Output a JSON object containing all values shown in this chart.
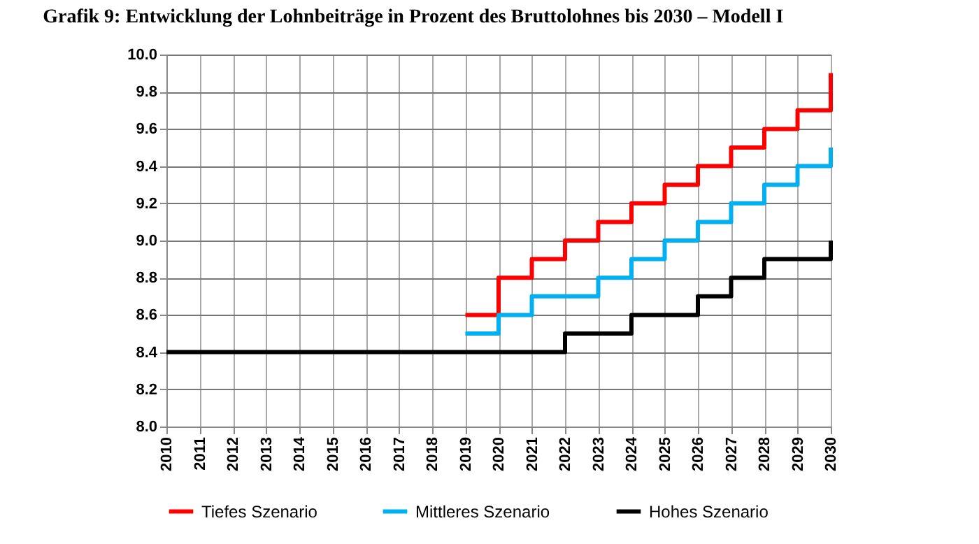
{
  "chart_data": {
    "type": "step",
    "title": "Grafik 9: Entwicklung der Lohnbeiträge in Prozent des Bruttolohnes bis 2030 – Modell I",
    "series": [
      {
        "name": "Tiefes Szenario",
        "color": "#ff0000",
        "x": [
          2019,
          2020,
          2021,
          2022,
          2023,
          2024,
          2025,
          2026,
          2027,
          2028,
          2029,
          2030
        ],
        "values": [
          8.6,
          8.8,
          8.9,
          9.0,
          9.1,
          9.2,
          9.3,
          9.4,
          9.5,
          9.6,
          9.7,
          9.9
        ]
      },
      {
        "name": "Mittleres Szenario",
        "color": "#00b0f0",
        "x": [
          2019,
          2020,
          2021,
          2022,
          2023,
          2024,
          2025,
          2026,
          2027,
          2028,
          2029,
          2030
        ],
        "values": [
          8.5,
          8.6,
          8.7,
          8.7,
          8.8,
          8.9,
          9.0,
          9.1,
          9.2,
          9.3,
          9.4,
          9.5
        ]
      },
      {
        "name": "Hohes Szenario",
        "color": "#000000",
        "x": [
          2010,
          2011,
          2012,
          2013,
          2014,
          2015,
          2016,
          2017,
          2018,
          2019,
          2020,
          2021,
          2022,
          2023,
          2024,
          2025,
          2026,
          2027,
          2028,
          2029,
          2030
        ],
        "values": [
          8.4,
          8.4,
          8.4,
          8.4,
          8.4,
          8.4,
          8.4,
          8.4,
          8.4,
          8.4,
          8.4,
          8.4,
          8.5,
          8.5,
          8.6,
          8.6,
          8.7,
          8.8,
          8.9,
          8.9,
          9.0
        ]
      }
    ],
    "xlim": [
      2010,
      2030
    ],
    "xticks": [
      2010,
      2011,
      2012,
      2013,
      2014,
      2015,
      2016,
      2017,
      2018,
      2019,
      2020,
      2021,
      2022,
      2023,
      2024,
      2025,
      2026,
      2027,
      2028,
      2029,
      2030
    ],
    "ylim": [
      8.0,
      10.0
    ],
    "yticks": [
      {
        "value": 8,
        "label": "8.0"
      },
      8.2,
      8.4,
      8.6,
      8.8,
      {
        "value": 9,
        "label": "9.0"
      },
      9.2,
      9.4,
      9.6,
      9.8,
      {
        "value": 10,
        "label": "10.0"
      }
    ],
    "grid": true,
    "legend": "bottom",
    "line_style": "solid",
    "marker": "none"
  }
}
